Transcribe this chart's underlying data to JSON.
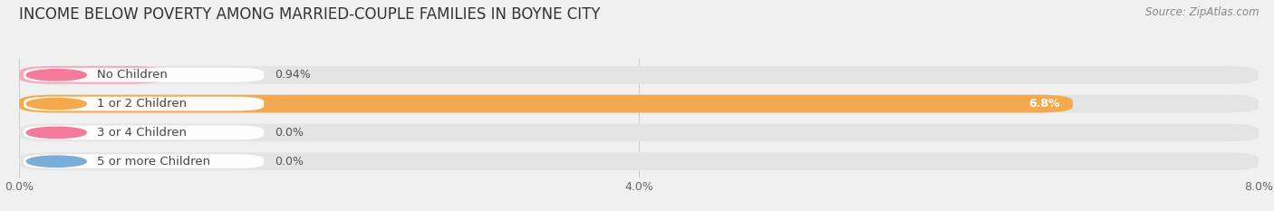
{
  "title": "INCOME BELOW POVERTY AMONG MARRIED-COUPLE FAMILIES IN BOYNE CITY",
  "source": "Source: ZipAtlas.com",
  "categories": [
    "No Children",
    "1 or 2 Children",
    "3 or 4 Children",
    "5 or more Children"
  ],
  "values": [
    0.94,
    6.8,
    0.0,
    0.0
  ],
  "bar_colors": [
    "#f9a8bc",
    "#f5a94e",
    "#f9a8bc",
    "#a8c8f0"
  ],
  "label_bg_colors": [
    "#f47a9a",
    "#f5a94e",
    "#f47a9a",
    "#7aaed6"
  ],
  "value_labels": [
    "0.94%",
    "6.8%",
    "0.0%",
    "0.0%"
  ],
  "value_label_inside": [
    false,
    true,
    false,
    false
  ],
  "xlim": [
    0,
    8.0
  ],
  "xticks": [
    0.0,
    4.0,
    8.0
  ],
  "xtick_labels": [
    "0.0%",
    "4.0%",
    "8.0%"
  ],
  "background_color": "#f0f0f0",
  "bar_bg_color": "#e4e4e4",
  "title_fontsize": 12,
  "tick_fontsize": 9,
  "label_fontsize": 9.5,
  "value_fontsize": 9
}
